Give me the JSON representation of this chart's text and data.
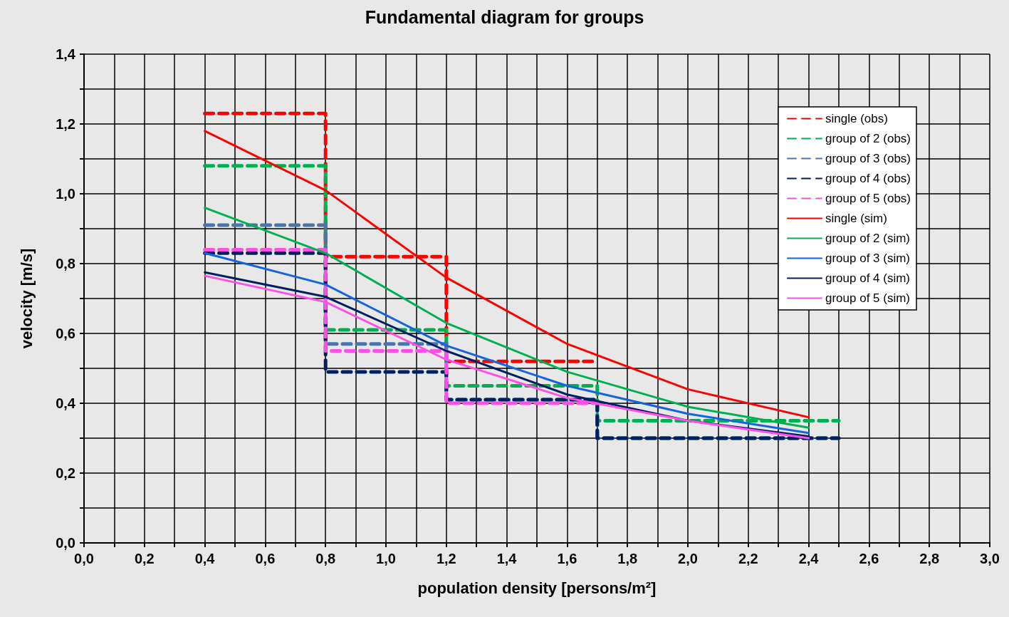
{
  "chart_data": {
    "type": "line",
    "title": "Fundamental diagram for groups",
    "xlabel": "population density [persons/m²]",
    "ylabel": "velocity [m/s]",
    "xlim": [
      0,
      3
    ],
    "ylim": [
      0,
      1.4
    ],
    "xticks": [
      {
        "value": 0,
        "label": "0,0"
      },
      {
        "value": 0.1,
        "label": null
      },
      {
        "value": 0.2,
        "label": "0,2"
      },
      {
        "value": 0.3,
        "label": null
      },
      {
        "value": 0.4,
        "label": "0,4"
      },
      {
        "value": 0.5,
        "label": null
      },
      {
        "value": 0.6,
        "label": "0,6"
      },
      {
        "value": 0.7,
        "label": null
      },
      {
        "value": 0.8,
        "label": "0,8"
      },
      {
        "value": 0.9,
        "label": null
      },
      {
        "value": 1.0,
        "label": "1,0"
      },
      {
        "value": 1.1,
        "label": null
      },
      {
        "value": 1.2,
        "label": "1,2"
      },
      {
        "value": 1.3,
        "label": null
      },
      {
        "value": 1.4,
        "label": "1,4"
      },
      {
        "value": 1.5,
        "label": null
      },
      {
        "value": 1.6,
        "label": "1,6"
      },
      {
        "value": 1.7,
        "label": null
      },
      {
        "value": 1.8,
        "label": "1,8"
      },
      {
        "value": 1.9,
        "label": null
      },
      {
        "value": 2.0,
        "label": "2,0"
      },
      {
        "value": 2.1,
        "label": null
      },
      {
        "value": 2.2,
        "label": "2,2"
      },
      {
        "value": 2.3,
        "label": null
      },
      {
        "value": 2.4,
        "label": "2,4"
      },
      {
        "value": 2.5,
        "label": null
      },
      {
        "value": 2.6,
        "label": "2,6"
      },
      {
        "value": 2.7,
        "label": null
      },
      {
        "value": 2.8,
        "label": "2,8"
      },
      {
        "value": 2.9,
        "label": null
      },
      {
        "value": 3.0,
        "label": "3,0"
      }
    ],
    "yticks": [
      {
        "value": 0,
        "label": "0,0"
      },
      {
        "value": 0.1,
        "label": null
      },
      {
        "value": 0.2,
        "label": "0,2"
      },
      {
        "value": 0.3,
        "label": null
      },
      {
        "value": 0.4,
        "label": "0,4"
      },
      {
        "value": 0.5,
        "label": null
      },
      {
        "value": 0.6,
        "label": "0,6"
      },
      {
        "value": 0.7,
        "label": null
      },
      {
        "value": 0.8,
        "label": "0,8"
      },
      {
        "value": 0.9,
        "label": null
      },
      {
        "value": 1.0,
        "label": "1,0"
      },
      {
        "value": 1.1,
        "label": null
      },
      {
        "value": 1.2,
        "label": "1,2"
      },
      {
        "value": 1.3,
        "label": null
      },
      {
        "value": 1.4,
        "label": "1,4"
      }
    ],
    "grid": true,
    "legend": "top right",
    "marker": "none",
    "series": [
      {
        "name": "single (obs)",
        "type": "step",
        "line_style": "dashed",
        "color": "#ff0000",
        "x": [
          0.4,
          0.8,
          1.2,
          1.7
        ],
        "values": [
          1.23,
          0.82,
          0.52,
          0.52
        ]
      },
      {
        "name": "group of 2 (obs)",
        "type": "step",
        "line_style": "dashed",
        "color": "#00b050",
        "x": [
          0.4,
          0.8,
          1.2,
          1.7,
          2.5
        ],
        "values": [
          1.08,
          0.61,
          0.45,
          0.35,
          0.35
        ]
      },
      {
        "name": "group of 3 (obs)",
        "type": "step",
        "line_style": "dashed",
        "color": "#4a74aa",
        "x": [
          0.4,
          0.8,
          1.2,
          1.7,
          2.5
        ],
        "values": [
          0.91,
          0.57,
          0.41,
          0.3,
          0.3
        ]
      },
      {
        "name": "group of 4 (obs)",
        "type": "step",
        "line_style": "dashed",
        "color": "#002060",
        "x": [
          0.4,
          0.8,
          1.2,
          1.7,
          2.5
        ],
        "values": [
          0.83,
          0.49,
          0.41,
          0.3,
          0.3
        ]
      },
      {
        "name": "group of 5 (obs)",
        "type": "step",
        "line_style": "dashed",
        "color": "#ff4fe6",
        "x": [
          0.4,
          0.8,
          1.2,
          1.7
        ],
        "values": [
          0.84,
          0.55,
          0.4,
          0.4
        ]
      },
      {
        "name": "single (sim)",
        "line_style": "solid",
        "color": "#ff0000",
        "x": [
          0.4,
          0.8,
          1.2,
          1.6,
          2.0,
          2.4
        ],
        "values": [
          1.18,
          1.01,
          0.76,
          0.57,
          0.44,
          0.36
        ]
      },
      {
        "name": "group of 2 (sim)",
        "line_style": "solid",
        "color": "#00b050",
        "x": [
          0.4,
          0.8,
          1.2,
          1.6,
          2.0,
          2.4
        ],
        "values": [
          0.96,
          0.83,
          0.63,
          0.49,
          0.39,
          0.33
        ]
      },
      {
        "name": "group of 3 (sim)",
        "line_style": "solid",
        "color": "#1464dc",
        "x": [
          0.4,
          0.8,
          1.2,
          1.6,
          2.0,
          2.4
        ],
        "values": [
          0.83,
          0.74,
          0.565,
          0.45,
          0.37,
          0.315
        ]
      },
      {
        "name": "group of 4 (sim)",
        "line_style": "solid",
        "color": "#002060",
        "x": [
          0.4,
          0.8,
          1.2,
          1.6,
          2.0,
          2.4
        ],
        "values": [
          0.775,
          0.705,
          0.55,
          0.425,
          0.35,
          0.305
        ]
      },
      {
        "name": "group of 5 (sim)",
        "line_style": "solid",
        "color": "#ff4fe6",
        "x": [
          0.4,
          0.8,
          1.2,
          1.6,
          2.0,
          2.4
        ],
        "values": [
          0.765,
          0.69,
          0.525,
          0.415,
          0.35,
          0.3
        ]
      }
    ]
  }
}
